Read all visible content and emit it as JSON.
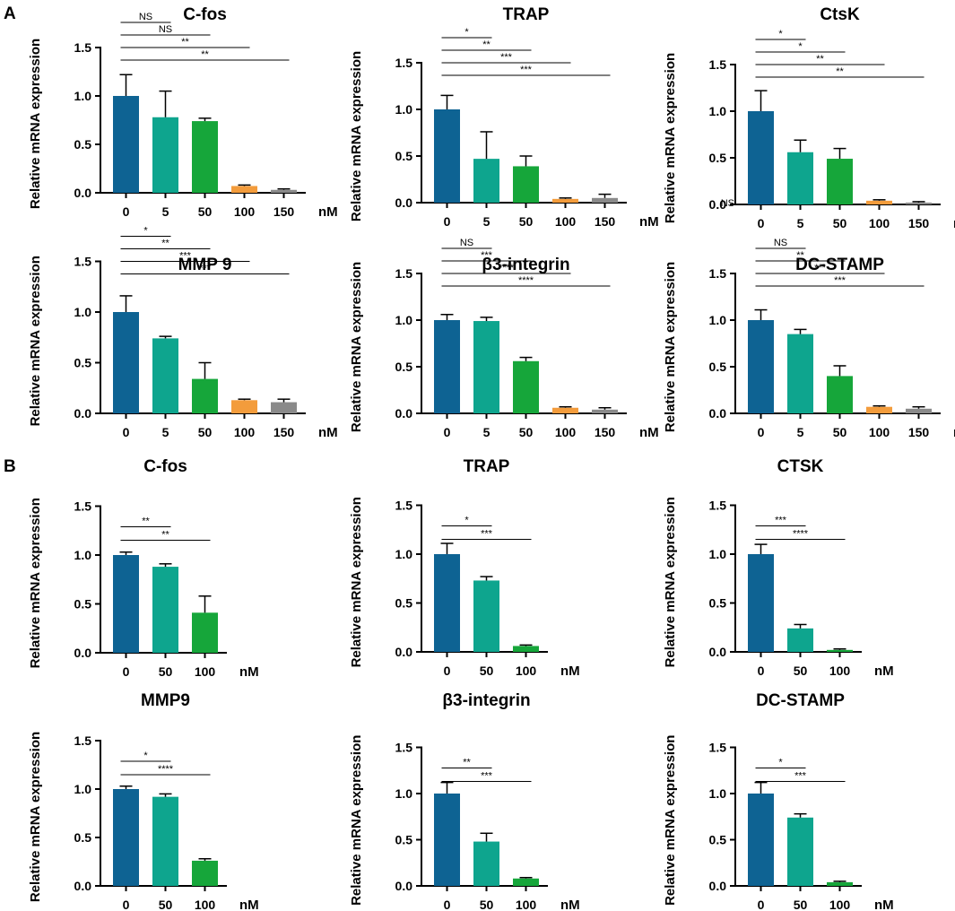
{
  "panels": [
    {
      "letter": "A"
    },
    {
      "letter": "B"
    }
  ],
  "colors": {
    "0": "#0e6393",
    "5": "#0ea58e",
    "50_A": "#16a63a",
    "50_B": "#0ea58e",
    "100_A": "#f39c3c",
    "100_B": "#16a63a",
    "150": "#8a8a8a"
  },
  "chart_data": [
    {
      "panel": "A",
      "type": "bar",
      "title": "C-fos",
      "ylabel": "Relative mRNA expression",
      "xlabel": "",
      "unit": "nM",
      "ylim": [
        0,
        1.5
      ],
      "yticks": [
        "0.0",
        "0.5",
        "1.0",
        "1.5"
      ],
      "categories": [
        "0",
        "5",
        "50",
        "100",
        "150"
      ],
      "colors": [
        "#0e6393",
        "#0ea58e",
        "#16a63a",
        "#f39c3c",
        "#8a8a8a"
      ],
      "values": [
        1.0,
        0.78,
        0.74,
        0.07,
        0.03
      ],
      "errors": [
        0.22,
        0.27,
        0.03,
        0.01,
        0.01
      ],
      "significance": [
        {
          "to": 1,
          "label": "NS"
        },
        {
          "to": 2,
          "label": "NS"
        },
        {
          "to": 3,
          "label": "**"
        },
        {
          "to": 4,
          "label": "**"
        }
      ],
      "extra": ""
    },
    {
      "panel": "A",
      "type": "bar",
      "title": "TRAP",
      "ylabel": "Relative mRNA expression",
      "xlabel": "",
      "unit": "nM",
      "ylim": [
        0,
        1.5
      ],
      "yticks": [
        "0.0",
        "0.5",
        "1.0",
        "1.5"
      ],
      "categories": [
        "0",
        "5",
        "50",
        "100",
        "150"
      ],
      "colors": [
        "#0e6393",
        "#0ea58e",
        "#16a63a",
        "#f39c3c",
        "#8a8a8a"
      ],
      "values": [
        1.0,
        0.47,
        0.39,
        0.04,
        0.05
      ],
      "errors": [
        0.15,
        0.29,
        0.11,
        0.01,
        0.04
      ],
      "significance": [
        {
          "to": 1,
          "label": "*"
        },
        {
          "to": 2,
          "label": "**"
        },
        {
          "to": 3,
          "label": "***"
        },
        {
          "to": 4,
          "label": "***"
        }
      ],
      "extra": ""
    },
    {
      "panel": "A",
      "type": "bar",
      "title": "CtsK",
      "ylabel": "Relative mRNA expression",
      "xlabel": "",
      "unit": "nM",
      "ylim": [
        0,
        1.5
      ],
      "yticks": [
        "0.0",
        "0.5",
        "1.0",
        "1.5"
      ],
      "categories": [
        "0",
        "5",
        "50",
        "100",
        "150"
      ],
      "colors": [
        "#0e6393",
        "#0ea58e",
        "#16a63a",
        "#f39c3c",
        "#8a8a8a"
      ],
      "values": [
        1.0,
        0.56,
        0.49,
        0.04,
        0.02
      ],
      "errors": [
        0.22,
        0.13,
        0.11,
        0.01,
        0.01
      ],
      "significance": [
        {
          "to": 1,
          "label": "*"
        },
        {
          "to": 2,
          "label": "*"
        },
        {
          "to": 3,
          "label": "**"
        },
        {
          "to": 4,
          "label": "**"
        }
      ],
      "extra": "NS"
    },
    {
      "panel": "A",
      "type": "bar",
      "title": "MMP 9",
      "ylabel": "Relative mRNA expression",
      "xlabel": "",
      "unit": "nM",
      "ylim": [
        0,
        1.5
      ],
      "yticks": [
        "0.0",
        "0.5",
        "1.0",
        "1.5"
      ],
      "categories": [
        "0",
        "5",
        "50",
        "100",
        "150"
      ],
      "colors": [
        "#0e6393",
        "#0ea58e",
        "#16a63a",
        "#f39c3c",
        "#8a8a8a"
      ],
      "values": [
        1.0,
        0.74,
        0.34,
        0.13,
        0.11
      ],
      "errors": [
        0.16,
        0.02,
        0.16,
        0.01,
        0.03
      ],
      "significance": [
        {
          "to": 1,
          "label": "*"
        },
        {
          "to": 2,
          "label": "**"
        },
        {
          "to": 3,
          "label": "***"
        },
        {
          "to": 4,
          "label": "***"
        }
      ],
      "extra": ""
    },
    {
      "panel": "A",
      "type": "bar",
      "title": "β3-integrin",
      "ylabel": "Relative mRNA expression",
      "xlabel": "",
      "unit": "nM",
      "ylim": [
        0,
        1.5
      ],
      "yticks": [
        "0.0",
        "0.5",
        "1.0",
        "1.5"
      ],
      "categories": [
        "0",
        "5",
        "50",
        "100",
        "150"
      ],
      "colors": [
        "#0e6393",
        "#0ea58e",
        "#16a63a",
        "#f39c3c",
        "#8a8a8a"
      ],
      "values": [
        1.0,
        0.99,
        0.56,
        0.06,
        0.04
      ],
      "errors": [
        0.06,
        0.04,
        0.04,
        0.01,
        0.02
      ],
      "significance": [
        {
          "to": 1,
          "label": "NS"
        },
        {
          "to": 2,
          "label": "***"
        },
        {
          "to": 3,
          "label": "****"
        },
        {
          "to": 4,
          "label": "****"
        }
      ],
      "extra": ""
    },
    {
      "panel": "A",
      "type": "bar",
      "title": "DC-STAMP",
      "ylabel": "Relative mRNA expression",
      "xlabel": "",
      "unit": "nM",
      "ylim": [
        0,
        1.5
      ],
      "yticks": [
        "0.0",
        "0.5",
        "1.0",
        "1.5"
      ],
      "categories": [
        "0",
        "5",
        "50",
        "100",
        "150"
      ],
      "colors": [
        "#0e6393",
        "#0ea58e",
        "#16a63a",
        "#f39c3c",
        "#8a8a8a"
      ],
      "values": [
        1.0,
        0.85,
        0.4,
        0.07,
        0.05
      ],
      "errors": [
        0.11,
        0.05,
        0.11,
        0.01,
        0.02
      ],
      "significance": [
        {
          "to": 1,
          "label": "NS"
        },
        {
          "to": 2,
          "label": "**"
        },
        {
          "to": 3,
          "label": "***"
        },
        {
          "to": 4,
          "label": "***"
        }
      ],
      "extra": ""
    },
    {
      "panel": "B",
      "type": "bar",
      "title": "C-fos",
      "ylabel": "Relative mRNA expression",
      "xlabel": "",
      "unit": "nM",
      "ylim": [
        0,
        1.5
      ],
      "yticks": [
        "0.0",
        "0.5",
        "1.0",
        "1.5"
      ],
      "categories": [
        "0",
        "50",
        "100"
      ],
      "colors": [
        "#0e6393",
        "#0ea58e",
        "#16a63a"
      ],
      "values": [
        1.0,
        0.88,
        0.41
      ],
      "errors": [
        0.03,
        0.03,
        0.17
      ],
      "significance": [
        {
          "to": 1,
          "label": "**"
        },
        {
          "to": 2,
          "label": "**"
        }
      ],
      "extra": ""
    },
    {
      "panel": "B",
      "type": "bar",
      "title": "TRAP",
      "ylabel": "Relative mRNA expression",
      "xlabel": "",
      "unit": "nM",
      "ylim": [
        0,
        1.5
      ],
      "yticks": [
        "0.0",
        "0.5",
        "1.0",
        "1.5"
      ],
      "categories": [
        "0",
        "50",
        "100"
      ],
      "colors": [
        "#0e6393",
        "#0ea58e",
        "#16a63a"
      ],
      "values": [
        1.0,
        0.73,
        0.06
      ],
      "errors": [
        0.11,
        0.04,
        0.01
      ],
      "significance": [
        {
          "to": 1,
          "label": "*"
        },
        {
          "to": 2,
          "label": "***"
        }
      ],
      "extra": ""
    },
    {
      "panel": "B",
      "type": "bar",
      "title": "CTSK",
      "ylabel": "Relative mRNA expression",
      "xlabel": "",
      "unit": "nM",
      "ylim": [
        0,
        1.5
      ],
      "yticks": [
        "0.0",
        "0.5",
        "1.0",
        "1.5"
      ],
      "categories": [
        "0",
        "50",
        "100"
      ],
      "colors": [
        "#0e6393",
        "#0ea58e",
        "#16a63a"
      ],
      "values": [
        1.0,
        0.24,
        0.02
      ],
      "errors": [
        0.1,
        0.04,
        0.01
      ],
      "significance": [
        {
          "to": 1,
          "label": "***"
        },
        {
          "to": 2,
          "label": "****"
        }
      ],
      "extra": ""
    },
    {
      "panel": "B",
      "type": "bar",
      "title": "MMP9",
      "ylabel": "Relative mRNA expression",
      "xlabel": "",
      "unit": "nM",
      "ylim": [
        0,
        1.5
      ],
      "yticks": [
        "0.0",
        "0.5",
        "1.0",
        "1.5"
      ],
      "categories": [
        "0",
        "50",
        "100"
      ],
      "colors": [
        "#0e6393",
        "#0ea58e",
        "#16a63a"
      ],
      "values": [
        1.0,
        0.92,
        0.26
      ],
      "errors": [
        0.03,
        0.03,
        0.02
      ],
      "significance": [
        {
          "to": 1,
          "label": "*"
        },
        {
          "to": 2,
          "label": "****"
        }
      ],
      "extra": ""
    },
    {
      "panel": "B",
      "type": "bar",
      "title": "β3-integrin",
      "ylabel": "Relative mRNA expression",
      "xlabel": "",
      "unit": "nM",
      "ylim": [
        0,
        1.5
      ],
      "yticks": [
        "0.0",
        "0.5",
        "1.0",
        "1.5"
      ],
      "categories": [
        "0",
        "50",
        "100"
      ],
      "colors": [
        "#0e6393",
        "#0ea58e",
        "#16a63a"
      ],
      "values": [
        1.0,
        0.48,
        0.08
      ],
      "errors": [
        0.12,
        0.09,
        0.01
      ],
      "significance": [
        {
          "to": 1,
          "label": "**"
        },
        {
          "to": 2,
          "label": "***"
        }
      ],
      "extra": ""
    },
    {
      "panel": "B",
      "type": "bar",
      "title": "DC-STAMP",
      "ylabel": "Relative mRNA expression",
      "xlabel": "",
      "unit": "nM",
      "ylim": [
        0,
        1.5
      ],
      "yticks": [
        "0.0",
        "0.5",
        "1.0",
        "1.5"
      ],
      "categories": [
        "0",
        "50",
        "100"
      ],
      "colors": [
        "#0e6393",
        "#0ea58e",
        "#16a63a"
      ],
      "values": [
        1.0,
        0.74,
        0.04
      ],
      "errors": [
        0.12,
        0.04,
        0.01
      ],
      "significance": [
        {
          "to": 1,
          "label": "*"
        },
        {
          "to": 2,
          "label": "***"
        }
      ],
      "extra": ""
    }
  ]
}
